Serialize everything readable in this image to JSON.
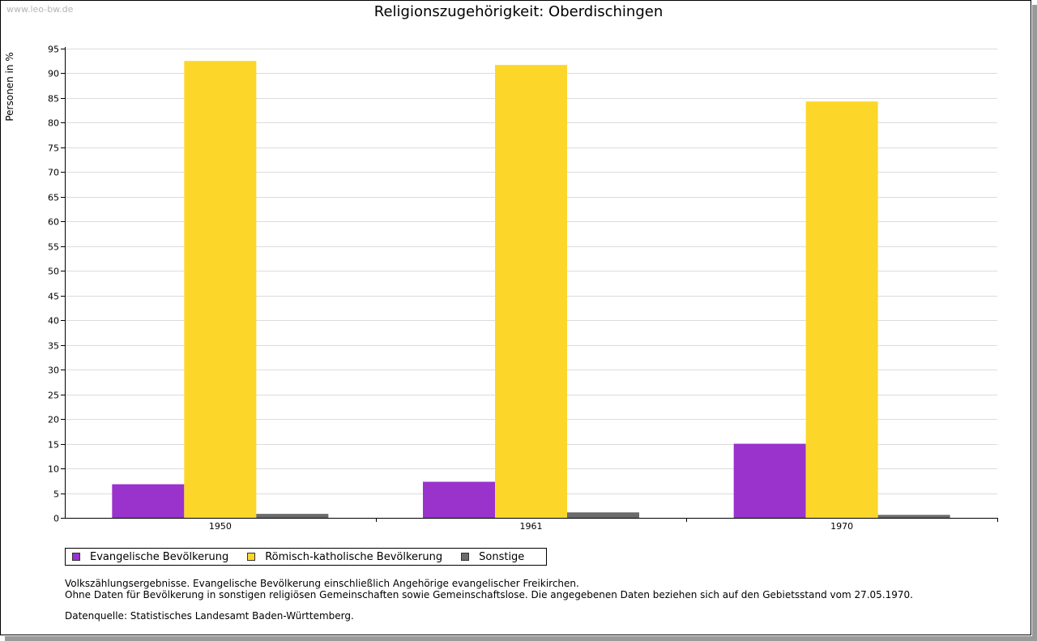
{
  "watermark": "www.leo-bw.de",
  "chart_data": {
    "type": "bar",
    "title": "Religionszugehörigkeit: Oberdischingen",
    "xlabel": "",
    "ylabel": "Personen in %",
    "ylim": [
      0,
      95
    ],
    "ytick_step": 5,
    "grid": true,
    "categories": [
      "1950",
      "1961",
      "1970"
    ],
    "series": [
      {
        "name": "Evangelische Bevölkerung",
        "color": "#9933cc",
        "values": [
          6.8,
          7.3,
          15.0
        ]
      },
      {
        "name": "Römisch-katholische Bevölkerung",
        "color": "#fcd72a",
        "values": [
          92.5,
          91.7,
          84.3
        ]
      },
      {
        "name": "Sonstige",
        "color": "#6b6b6b",
        "values": [
          0.8,
          1.1,
          0.6
        ]
      }
    ],
    "legend_position": "bottom-left"
  },
  "notes": {
    "line1": "Volkszählungsergebnisse. Evangelische Bevölkerung einschließlich Angehörige evangelischer Freikirchen.",
    "line2": "Ohne Daten für Bevölkerung in sonstigen religiösen Gemeinschaften sowie Gemeinschaftslose. Die angegebenen Daten beziehen sich auf den Gebietsstand vom 27.05.1970."
  },
  "source": "Datenquelle: Statistisches Landesamt Baden-Württemberg."
}
